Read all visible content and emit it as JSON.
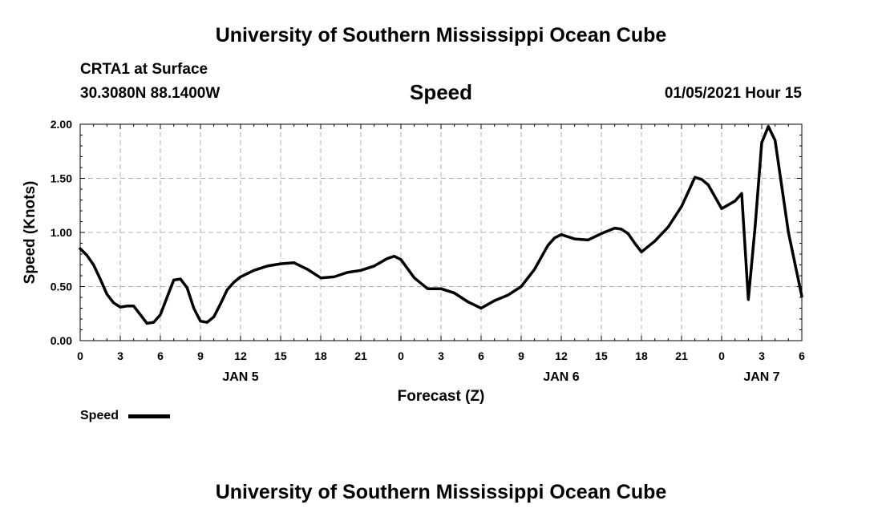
{
  "header": {
    "title": "University of Southern Mississippi Ocean Cube",
    "station": "CRTA1 at Surface",
    "coordinates": "30.3080N 88.1400W",
    "variable": "Speed",
    "datetime": "01/05/2021 Hour 15"
  },
  "footer": {
    "title": "University of Southern Mississippi Ocean Cube"
  },
  "legend": {
    "label": "Speed",
    "color": "#000000",
    "placement": "bottom-left"
  },
  "chart_data": {
    "type": "line",
    "title": "Speed",
    "xlabel": "Forecast (Z)",
    "ylabel": "Speed (Knots)",
    "ylim": [
      0,
      2
    ],
    "xlim": [
      0,
      54
    ],
    "grid": true,
    "x_tick_values": [
      0,
      3,
      6,
      9,
      12,
      15,
      18,
      21,
      24,
      27,
      30,
      33,
      36,
      39,
      42,
      45,
      48,
      51,
      54
    ],
    "x_tick_labels": [
      "0",
      "3",
      "6",
      "9",
      "12",
      "15",
      "18",
      "21",
      "0",
      "3",
      "6",
      "9",
      "12",
      "15",
      "18",
      "21",
      "0",
      "3",
      "6"
    ],
    "y_tick_values": [
      0,
      0.5,
      1,
      1.5,
      2
    ],
    "y_tick_labels": [
      "0.00",
      "0.50",
      "1.00",
      "1.50",
      "2.00"
    ],
    "day_labels": [
      {
        "x": 12,
        "label": "JAN 5"
      },
      {
        "x": 36,
        "label": "JAN 6"
      },
      {
        "x": 51,
        "label": "JAN 7"
      }
    ],
    "series": [
      {
        "name": "Speed",
        "color": "#000000",
        "x": [
          0,
          0.5,
          1,
          1.5,
          2,
          2.5,
          3,
          3.5,
          4,
          4.5,
          5,
          5.5,
          6,
          6.5,
          7,
          7.5,
          8,
          8.5,
          9,
          9.5,
          10,
          10.5,
          11,
          11.5,
          12,
          13,
          14,
          15,
          16,
          17,
          18,
          19,
          20,
          21,
          22,
          23,
          23.5,
          24,
          25,
          26,
          27,
          28,
          29,
          30,
          31,
          32,
          33,
          34,
          35,
          35.5,
          36,
          37,
          38,
          39,
          40,
          40.5,
          41,
          41.5,
          42,
          43,
          44,
          45,
          46,
          46.5,
          47,
          48,
          49,
          49.5,
          50,
          50.5,
          51,
          51.5,
          52,
          53,
          54
        ],
        "y": [
          0.85,
          0.79,
          0.7,
          0.57,
          0.43,
          0.35,
          0.31,
          0.32,
          0.32,
          0.24,
          0.16,
          0.17,
          0.24,
          0.4,
          0.56,
          0.57,
          0.49,
          0.3,
          0.18,
          0.17,
          0.22,
          0.34,
          0.47,
          0.54,
          0.59,
          0.65,
          0.69,
          0.71,
          0.72,
          0.66,
          0.58,
          0.59,
          0.63,
          0.65,
          0.69,
          0.76,
          0.78,
          0.75,
          0.58,
          0.48,
          0.48,
          0.44,
          0.36,
          0.3,
          0.37,
          0.42,
          0.5,
          0.66,
          0.88,
          0.95,
          0.98,
          0.94,
          0.93,
          0.99,
          1.04,
          1.03,
          0.99,
          0.9,
          0.82,
          0.92,
          1.05,
          1.24,
          1.51,
          1.49,
          1.44,
          1.22,
          1.29,
          1.36,
          0.38,
          1.05,
          1.83,
          1.98,
          1.85,
          1.0,
          0.41
        ]
      }
    ]
  }
}
